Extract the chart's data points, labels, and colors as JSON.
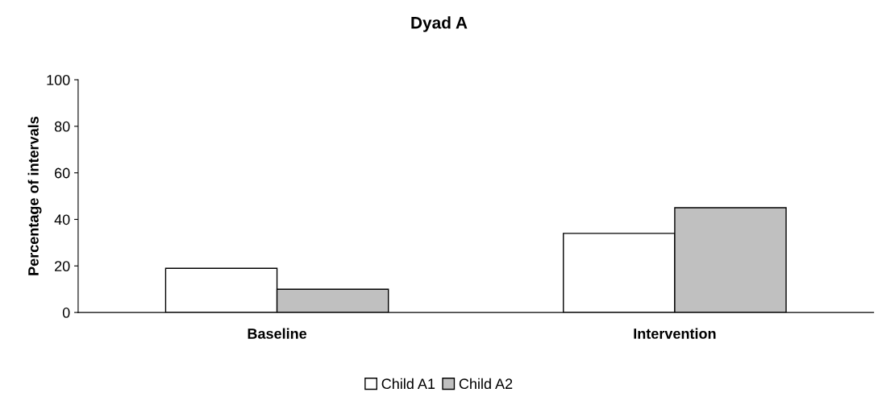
{
  "chart_data": {
    "type": "bar",
    "title": "Dyad A",
    "ylabel": "Percentage of intervals",
    "categories": [
      "Baseline",
      "Intervention"
    ],
    "series": [
      {
        "name": "Child A1",
        "color": "#ffffff",
        "values": [
          19,
          34
        ]
      },
      {
        "name": "Child A2",
        "color": "#c0c0c0",
        "values": [
          10,
          45
        ]
      }
    ],
    "ylim": [
      0,
      100
    ],
    "yticks": [
      0,
      20,
      40,
      60,
      80,
      100
    ],
    "grid": false,
    "legend": "bottom"
  }
}
